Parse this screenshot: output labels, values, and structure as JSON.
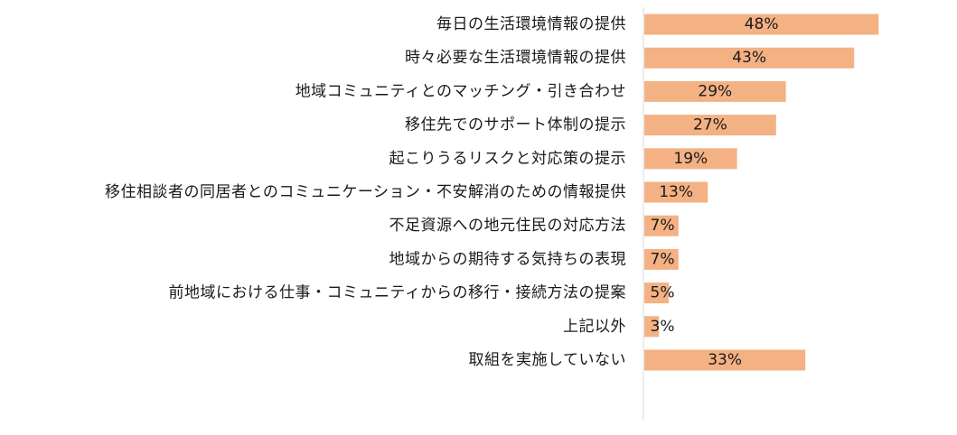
{
  "chart_data": {
    "type": "bar",
    "orientation": "horizontal",
    "title": "",
    "xlabel": "",
    "ylabel": "",
    "xlim": [
      0,
      100
    ],
    "unit": "%",
    "grid": false,
    "legend": "none",
    "bar_color": "#f4b183",
    "axis_color": "#d9d9d9",
    "text_color": "#1a1a1a",
    "categories": [
      "毎日の生活環境情報の提供",
      "時々必要な生活環境情報の提供",
      "地域コミュニティとのマッチング・引き合わせ",
      "移住先でのサポート体制の提示",
      "起こりうるリスクと対応策の提示",
      "移住相談者の同居者とのコミュニケーション・不安解消のための情報提供",
      "不足資源への地元住民の対応方法",
      "地域からの期待する気持ちの表現",
      "前地域における仕事・コミュニティからの移行・接続方法の提案",
      "上記以外",
      "取組を実施していない"
    ],
    "values": [
      48,
      43,
      29,
      27,
      19,
      13,
      7,
      7,
      5,
      3,
      33
    ],
    "value_labels": [
      "48%",
      "43%",
      "29%",
      "27%",
      "19%",
      "13%",
      "7%",
      "7%",
      "5%",
      "3%",
      "33%"
    ]
  }
}
